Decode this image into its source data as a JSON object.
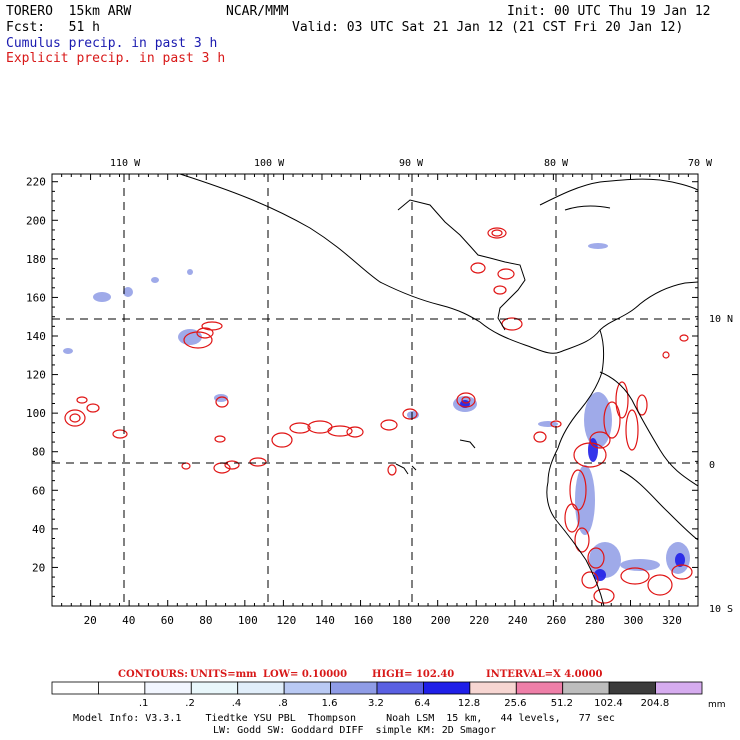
{
  "header": {
    "model": "TORERO  15km ARW",
    "org": "NCAR/MMM",
    "init": "Init: 00 UTC Thu 19 Jan 12",
    "fcst": "Fcst:   51 h",
    "valid": "Valid: 03 UTC Sat 21 Jan 12 (21 CST Fri 20 Jan 12)",
    "fields": [
      {
        "label": "Cumulus precip. in past 3 h",
        "color": "#1b1bb0"
      },
      {
        "label": "Explicit precip. in past 3 h",
        "color": "#d81818"
      }
    ]
  },
  "map": {
    "lon_labels": [
      "110 W",
      "100 W",
      "90 W",
      "80 W",
      "70 W"
    ],
    "lat_labels": [
      "10 N",
      "0",
      "10 S"
    ],
    "x_ticks": [
      "20",
      "40",
      "60",
      "80",
      "100",
      "120",
      "140",
      "160",
      "180",
      "200",
      "220",
      "240",
      "260",
      "280",
      "300",
      "320"
    ],
    "y_ticks": [
      "220",
      "200",
      "180",
      "160",
      "140",
      "120",
      "100",
      "80",
      "60",
      "40",
      "20"
    ],
    "contour_color": "#e01515",
    "coast_color": "#000000"
  },
  "contours_info": {
    "label": "CONTOURS:",
    "units": "UNITS=mm",
    "low": "LOW= 0.10000",
    "high": "HIGH=  102.40",
    "interval": "INTERVAL=X  4.0000"
  },
  "colorbar": {
    "colors": [
      "#ffffff",
      "#ffffff",
      "#f2f6ff",
      "#e9f7fb",
      "#e1eefa",
      "#b9c9f3",
      "#8f9ce6",
      "#5a60e2",
      "#1f1fe8",
      "#f7d6d2",
      "#ee7fa8",
      "#bdbdbd",
      "#3c3c3c",
      "#d6acef"
    ],
    "labels": [
      ".1",
      ".2",
      ".4",
      ".8",
      "1.6",
      "3.2",
      "6.4",
      "12.8",
      "25.6",
      "51.2",
      "102.4",
      "204.8"
    ],
    "unit": "mm"
  },
  "footer": {
    "line1": "Model Info: V3.3.1    Tiedtke YSU PBL  Thompson     Noah LSM  15 km,   44 levels,   77 sec",
    "line2": "LW: Godd SW: Goddard DIFF  simple KM: 2D Smagor"
  }
}
